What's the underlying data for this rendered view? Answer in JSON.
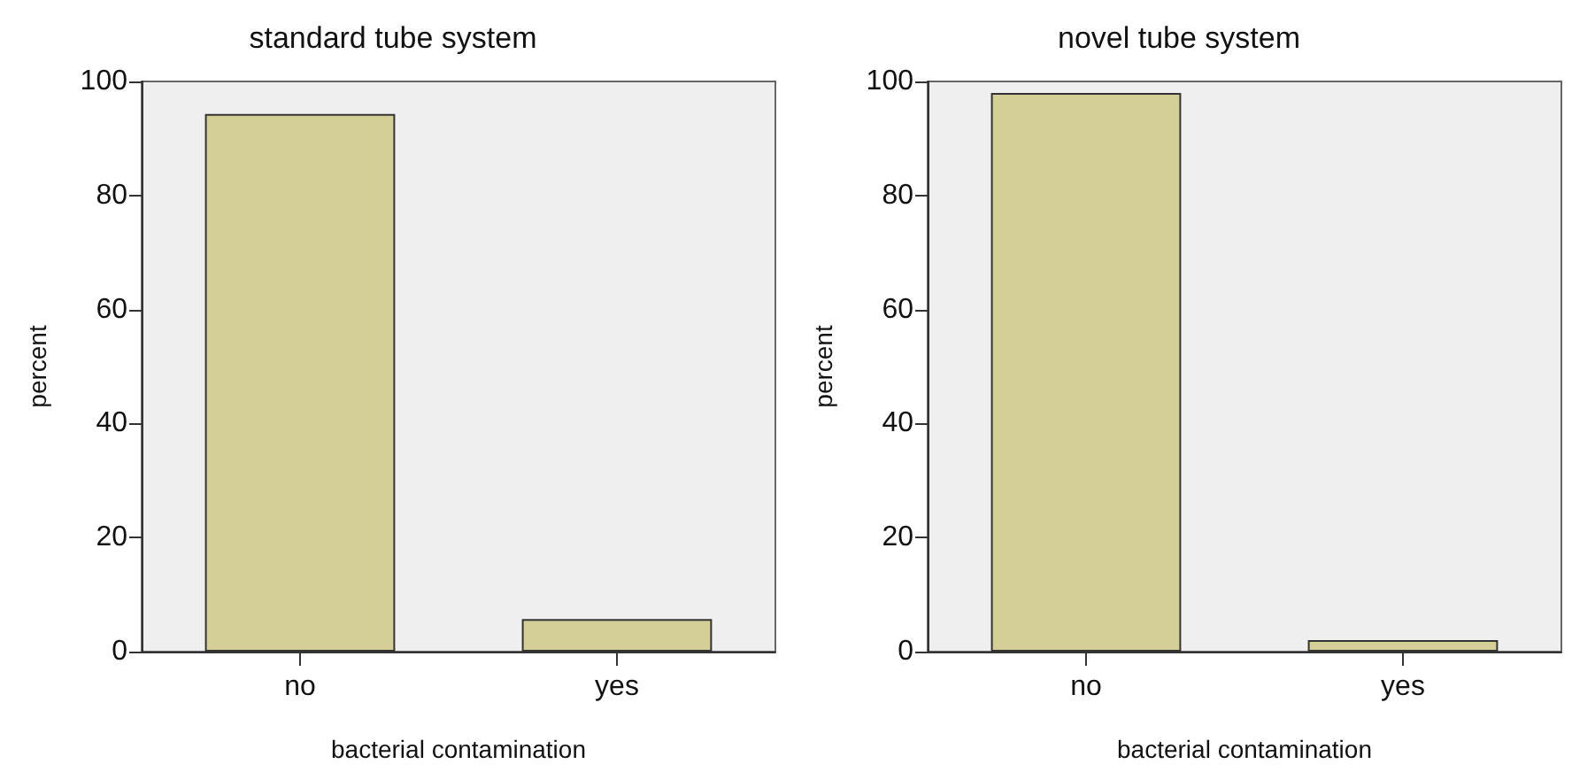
{
  "chart_data": [
    {
      "type": "bar",
      "title": "standard tube system",
      "xlabel": "bacterial contamination",
      "ylabel": "percent",
      "categories": [
        "no",
        "yes"
      ],
      "values": [
        94.3,
        5.7
      ],
      "color": "#d4cf97",
      "ylim": [
        0,
        100
      ],
      "yticks": [
        0,
        20,
        40,
        60,
        80,
        100
      ],
      "grid": false
    },
    {
      "type": "bar",
      "title": "novel tube system",
      "xlabel": "bacterial contamination",
      "ylabel": "percent",
      "categories": [
        "no",
        "yes"
      ],
      "values": [
        98.0,
        2.0
      ],
      "color": "#d4cf97",
      "ylim": [
        0,
        100
      ],
      "yticks": [
        0,
        20,
        40,
        60,
        80,
        100
      ],
      "grid": false
    }
  ]
}
